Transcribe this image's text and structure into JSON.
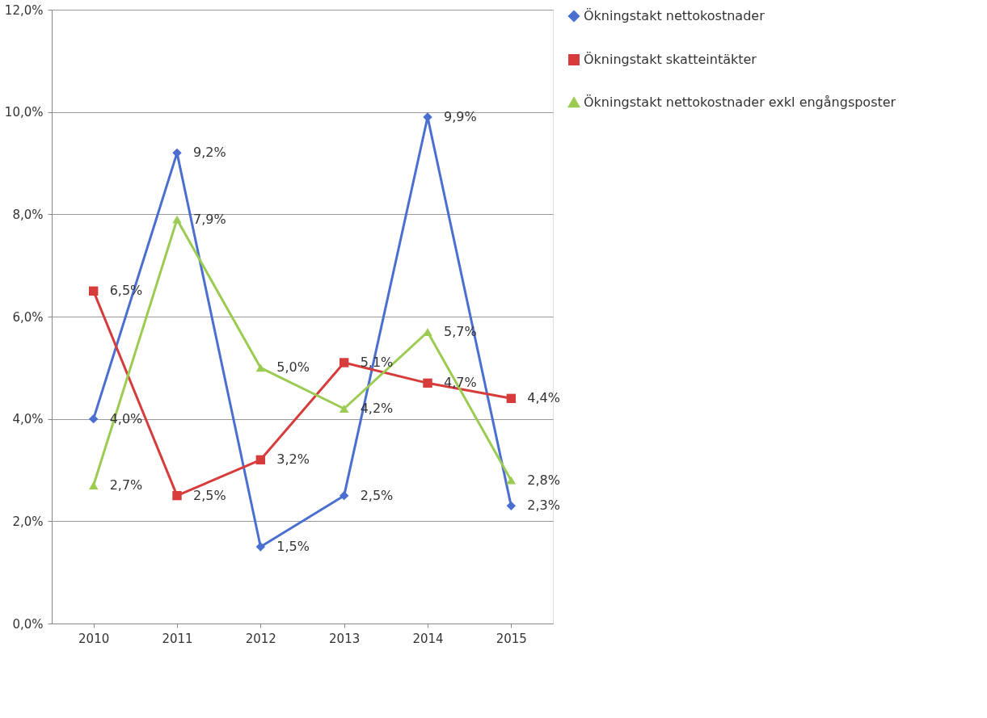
{
  "chart_data": {
    "type": "line",
    "categories": [
      "2010",
      "2011",
      "2012",
      "2013",
      "2014",
      "2015"
    ],
    "ylim": [
      0,
      12
    ],
    "yticks": [
      {
        "value": 0,
        "label": "0,0%"
      },
      {
        "value": 2,
        "label": "2,0%"
      },
      {
        "value": 4,
        "label": "4,0%"
      },
      {
        "value": 6,
        "label": "6,0%"
      },
      {
        "value": 8,
        "label": "8,0%"
      },
      {
        "value": 10,
        "label": "10,0%"
      },
      {
        "value": 12,
        "label": "12,0%"
      }
    ],
    "grid": "y",
    "legend": "right",
    "line_style": "solid",
    "series": [
      {
        "name": "Ökningstakt nettokostnader",
        "color": "#4a6fd0",
        "marker": "diamond",
        "values": [
          4.0,
          9.2,
          1.5,
          2.5,
          9.9,
          2.3
        ],
        "value_labels": [
          "4,0%",
          "9,2%",
          "1,5%",
          "2,5%",
          "9,9%",
          "2,3%"
        ]
      },
      {
        "name": "Ökningstakt skatteintäkter",
        "color": "#d63c3c",
        "marker": "square",
        "values": [
          6.5,
          2.5,
          3.2,
          5.1,
          4.7,
          4.4
        ],
        "value_labels": [
          "6,5%",
          "2,5%",
          "3,2%",
          "5,1%",
          "4,7%",
          "4,4%"
        ]
      },
      {
        "name": "Ökningstakt nettokostnader exkl engångsposter",
        "color": "#9ccb52",
        "marker": "triangle",
        "values": [
          2.7,
          7.9,
          5.0,
          4.2,
          5.7,
          2.8
        ],
        "value_labels": [
          "2,7%",
          "7,9%",
          "5,0%",
          "4,2%",
          "5,7%",
          "2,8%"
        ]
      }
    ]
  }
}
